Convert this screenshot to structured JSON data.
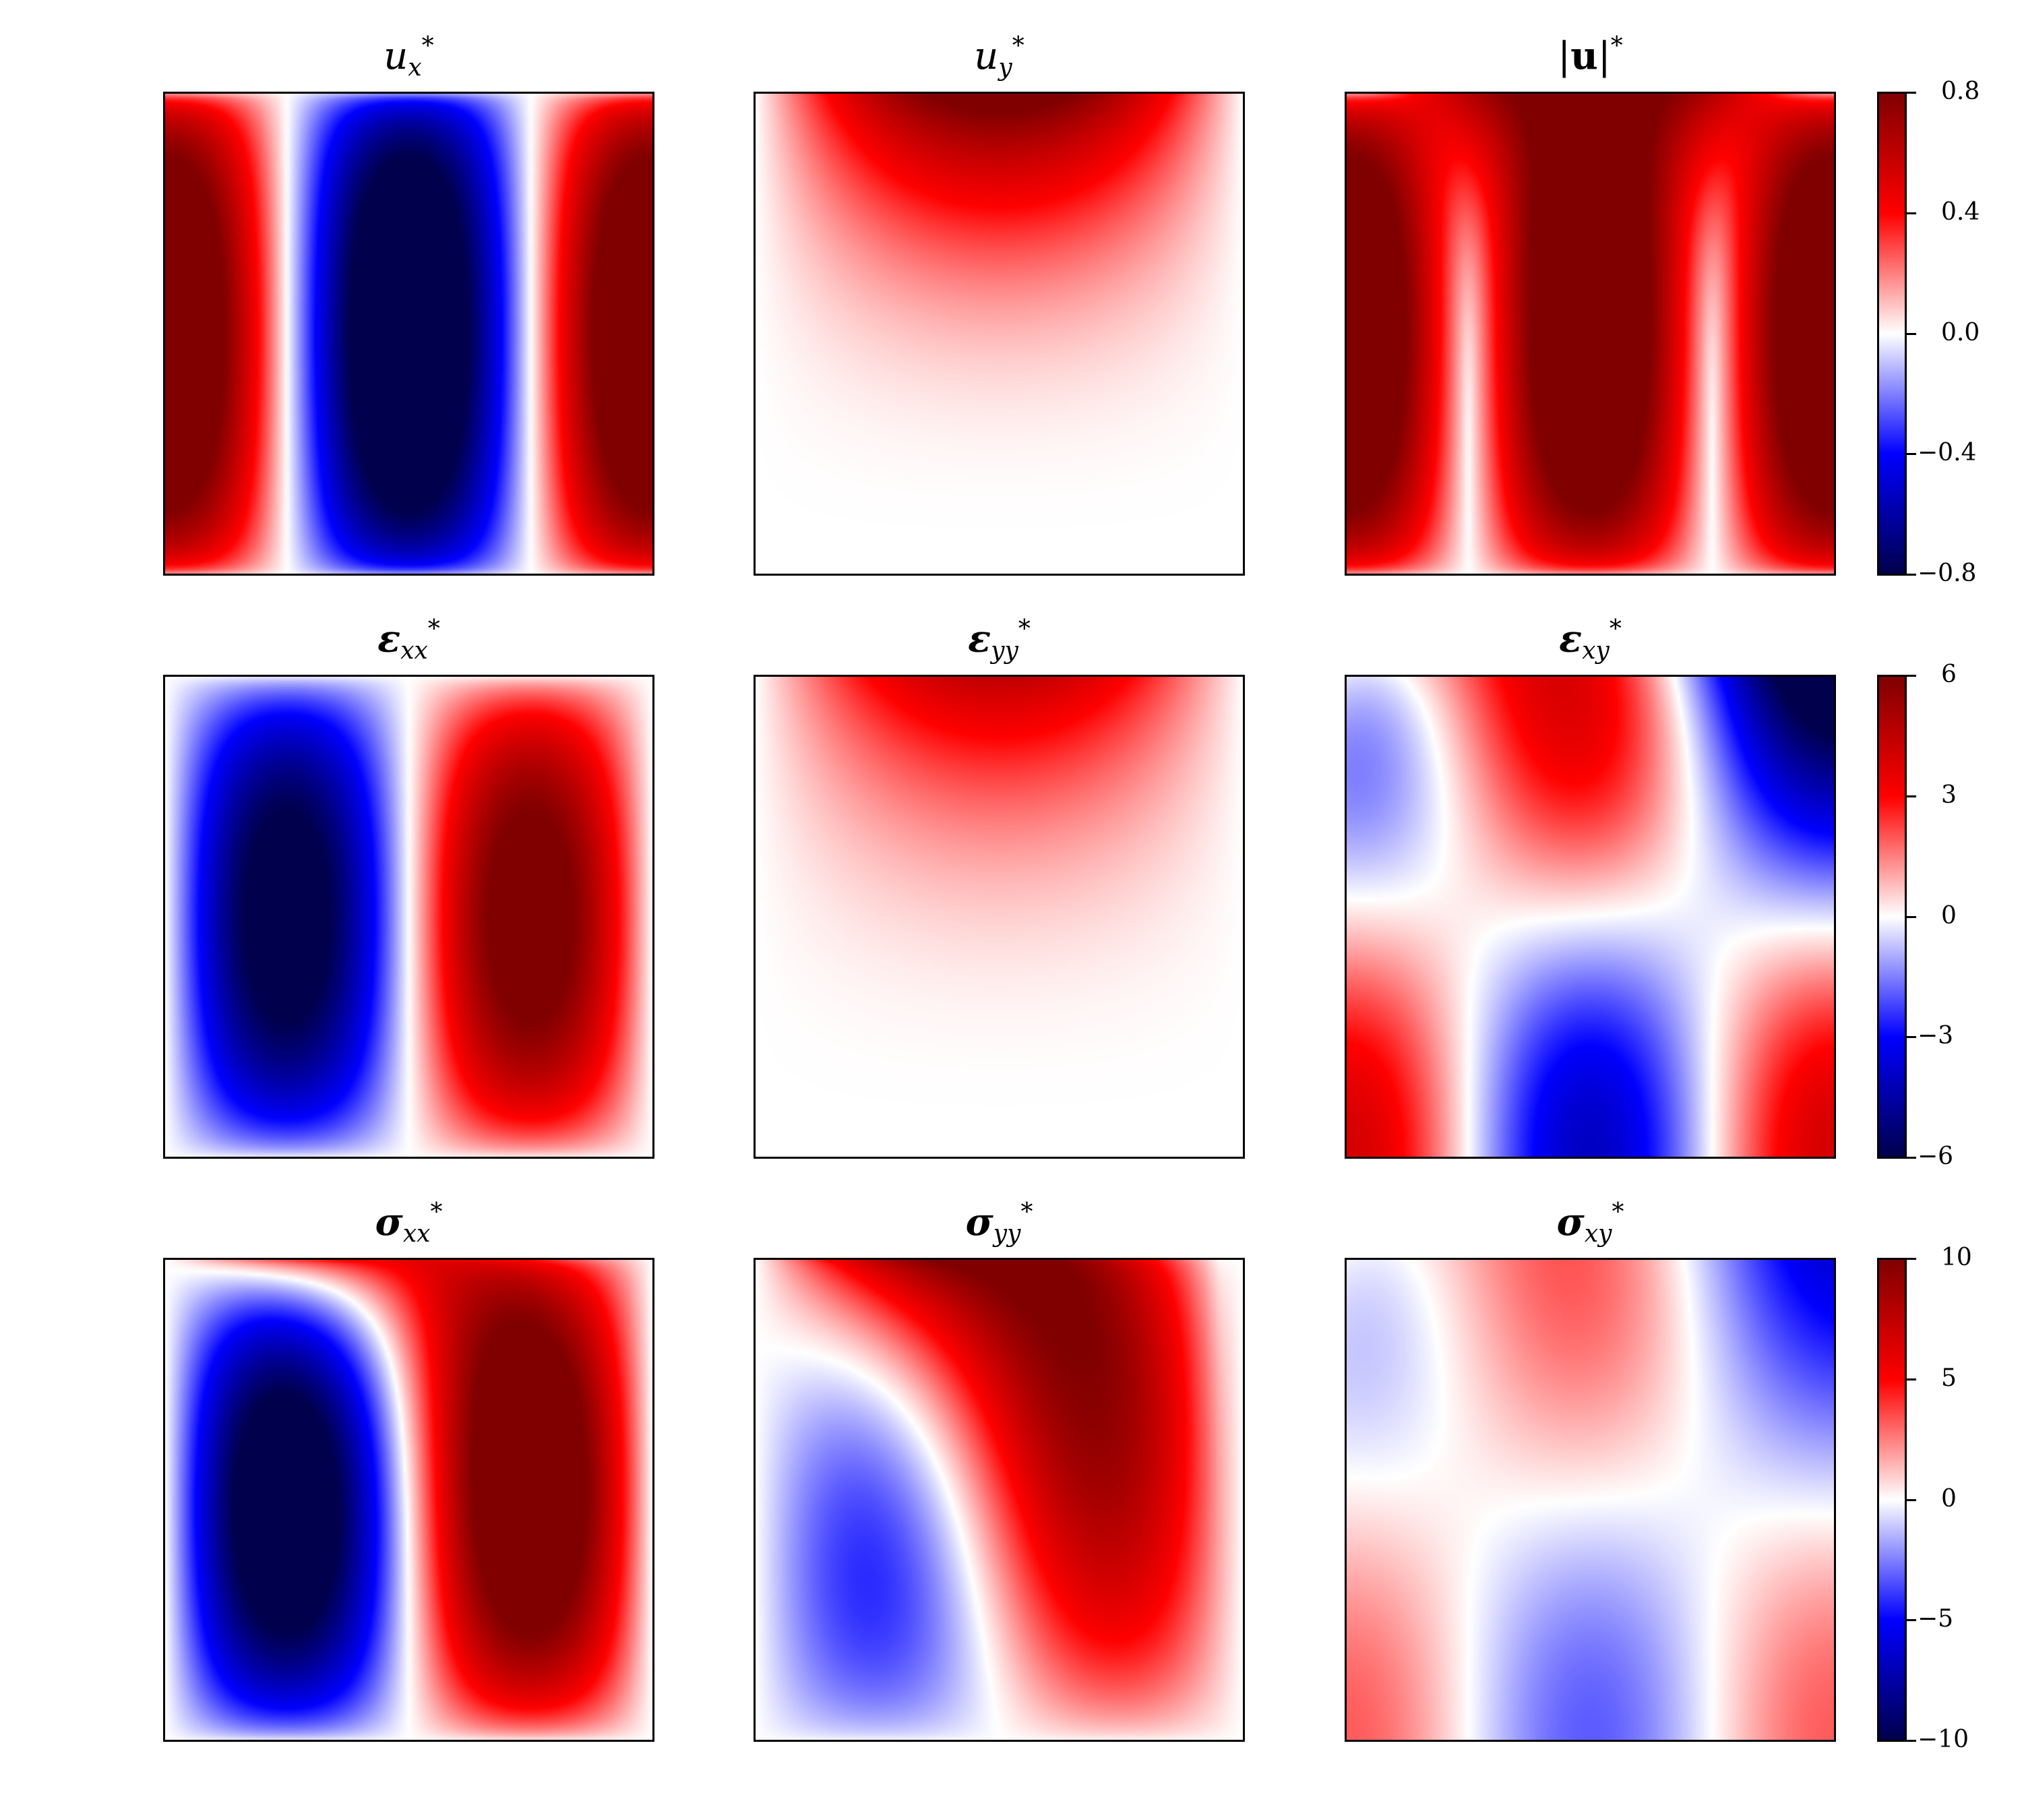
{
  "chart_data": [
    {
      "type": "heatmap",
      "title_sym": "u",
      "title_sub": "x",
      "title_sup": "*",
      "field": "ux",
      "vlim": [
        -0.8,
        0.8
      ],
      "colormap": "seismic"
    },
    {
      "type": "heatmap",
      "title_sym": "u",
      "title_sub": "y",
      "title_sup": "*",
      "field": "uy",
      "vlim": [
        -0.8,
        0.8
      ],
      "colormap": "seismic"
    },
    {
      "type": "heatmap",
      "title_sym": "|u|",
      "title_sub": "",
      "title_sup": "*",
      "field": "umag",
      "vlim": [
        -0.8,
        0.8
      ],
      "colormap": "seismic"
    },
    {
      "type": "heatmap",
      "title_sym": "ε",
      "title_sub": "xx",
      "title_sup": "*",
      "field": "exx",
      "vlim": [
        -6,
        6
      ],
      "colormap": "seismic"
    },
    {
      "type": "heatmap",
      "title_sym": "ε",
      "title_sub": "yy",
      "title_sup": "*",
      "field": "eyy",
      "vlim": [
        -6,
        6
      ],
      "colormap": "seismic"
    },
    {
      "type": "heatmap",
      "title_sym": "ε",
      "title_sub": "xy",
      "title_sup": "*",
      "field": "exy",
      "vlim": [
        -6,
        6
      ],
      "colormap": "seismic"
    },
    {
      "type": "heatmap",
      "title_sym": "σ",
      "title_sub": "xx",
      "title_sup": "*",
      "field": "sxx",
      "vlim": [
        -10,
        10
      ],
      "colormap": "seismic"
    },
    {
      "type": "heatmap",
      "title_sym": "σ",
      "title_sub": "yy",
      "title_sup": "*",
      "field": "syy",
      "vlim": [
        -10,
        10
      ],
      "colormap": "seismic"
    },
    {
      "type": "heatmap",
      "title_sym": "σ",
      "title_sub": "xy",
      "title_sup": "*",
      "field": "sxy",
      "vlim": [
        -10,
        10
      ],
      "colormap": "seismic"
    }
  ],
  "colorbars": [
    {
      "ticks": [
        "0.8",
        "0.4",
        "0.0",
        "−0.4",
        "−0.8"
      ],
      "vlim": [
        -0.8,
        0.8
      ]
    },
    {
      "ticks": [
        "6",
        "3",
        "0",
        "−3",
        "−6"
      ],
      "vlim": [
        -6,
        6
      ]
    },
    {
      "ticks": [
        "10",
        "5",
        "0",
        "−5",
        "−10"
      ],
      "vlim": [
        -10,
        10
      ]
    }
  ]
}
